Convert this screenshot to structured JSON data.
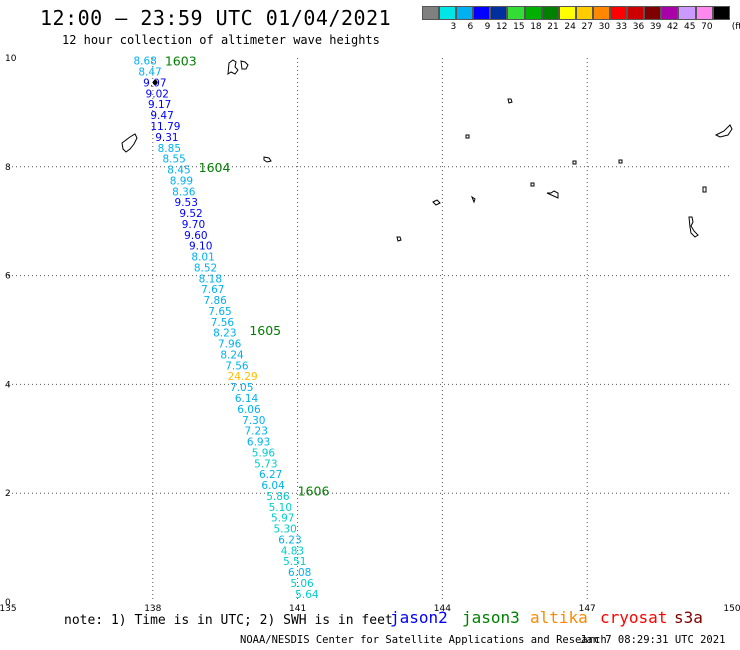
{
  "header": {
    "title": "12:00 – 23:59 UTC 01/04/2021",
    "subtitle": "12 hour collection of altimeter wave heights"
  },
  "colorbar": {
    "unit": "(ft)",
    "items": [
      {
        "label": "",
        "color": "#808080"
      },
      {
        "label": "3",
        "color": "#00e6e6"
      },
      {
        "label": "6",
        "color": "#00b0f0"
      },
      {
        "label": "9",
        "color": "#0000ff"
      },
      {
        "label": "12",
        "color": "#0030a0"
      },
      {
        "label": "15",
        "color": "#33dd33"
      },
      {
        "label": "18",
        "color": "#00b000"
      },
      {
        "label": "21",
        "color": "#008000"
      },
      {
        "label": "24",
        "color": "#ffff00"
      },
      {
        "label": "27",
        "color": "#ffcc00"
      },
      {
        "label": "30",
        "color": "#ff8800"
      },
      {
        "label": "33",
        "color": "#ff0000"
      },
      {
        "label": "36",
        "color": "#cc0000"
      },
      {
        "label": "39",
        "color": "#800000"
      },
      {
        "label": "42",
        "color": "#aa00aa"
      },
      {
        "label": "45",
        "color": "#cc99ff"
      },
      {
        "label": "70",
        "color": "#ff88ee"
      },
      {
        "label": "",
        "color": "#000000"
      }
    ]
  },
  "map": {
    "lon_range": [
      135,
      150
    ],
    "lat_range": [
      0,
      10
    ],
    "x_ticks": [
      "135",
      "138",
      "141",
      "144",
      "147",
      "150"
    ],
    "y_ticks": [
      "0",
      "2",
      "4",
      "6",
      "8",
      "10"
    ],
    "land_color": "#000000",
    "grid_style": "dotted"
  },
  "track": {
    "time_labels": [
      {
        "text": "1603",
        "lon": 138.25,
        "lat": 9.95,
        "color": "#008000"
      },
      {
        "text": "1604",
        "lon": 138.95,
        "lat": 8.0,
        "color": "#008000"
      },
      {
        "text": "1605",
        "lon": 140.0,
        "lat": 5.0,
        "color": "#008000"
      },
      {
        "text": "1606",
        "lon": 141.0,
        "lat": 2.05,
        "color": "#008000"
      }
    ],
    "points": [
      {
        "v": "8.68",
        "lon": 137.6,
        "lat": 9.95,
        "c": "#00b0f0"
      },
      {
        "v": "8.47",
        "lon": 137.7,
        "lat": 9.75,
        "c": "#00b0f0"
      },
      {
        "v": "9.07",
        "lon": 137.8,
        "lat": 9.55,
        "c": "#0000ff"
      },
      {
        "v": "9.02",
        "lon": 137.85,
        "lat": 9.35,
        "c": "#0000ff"
      },
      {
        "v": "9.17",
        "lon": 137.9,
        "lat": 9.15,
        "c": "#0000ff"
      },
      {
        "v": "9.47",
        "lon": 137.95,
        "lat": 8.95,
        "c": "#0000ff"
      },
      {
        "v": "11.79",
        "lon": 137.95,
        "lat": 8.75,
        "c": "#0000ff"
      },
      {
        "v": "9.31",
        "lon": 138.05,
        "lat": 8.55,
        "c": "#0000ff"
      },
      {
        "v": "8.85",
        "lon": 138.1,
        "lat": 8.35,
        "c": "#00b0f0"
      },
      {
        "v": "8.55",
        "lon": 138.2,
        "lat": 8.15,
        "c": "#00b0f0"
      },
      {
        "v": "8.45",
        "lon": 138.3,
        "lat": 7.95,
        "c": "#00b0f0"
      },
      {
        "v": "8.99",
        "lon": 138.35,
        "lat": 7.75,
        "c": "#00b0f0"
      },
      {
        "v": "8.36",
        "lon": 138.4,
        "lat": 7.55,
        "c": "#00b0f0"
      },
      {
        "v": "9.53",
        "lon": 138.45,
        "lat": 7.35,
        "c": "#0000ff"
      },
      {
        "v": "9.52",
        "lon": 138.55,
        "lat": 7.15,
        "c": "#0000ff"
      },
      {
        "v": "9.70",
        "lon": 138.6,
        "lat": 6.95,
        "c": "#0000ff"
      },
      {
        "v": "9.60",
        "lon": 138.65,
        "lat": 6.75,
        "c": "#0000ff"
      },
      {
        "v": "9.10",
        "lon": 138.75,
        "lat": 6.55,
        "c": "#0000ff"
      },
      {
        "v": "8.01",
        "lon": 138.8,
        "lat": 6.35,
        "c": "#00b0f0"
      },
      {
        "v": "8.52",
        "lon": 138.85,
        "lat": 6.15,
        "c": "#00b0f0"
      },
      {
        "v": "8.18",
        "lon": 138.95,
        "lat": 5.95,
        "c": "#00b0f0"
      },
      {
        "v": "7.67",
        "lon": 139.0,
        "lat": 5.75,
        "c": "#00b0f0"
      },
      {
        "v": "7.86",
        "lon": 139.05,
        "lat": 5.55,
        "c": "#00b0f0"
      },
      {
        "v": "7.65",
        "lon": 139.15,
        "lat": 5.35,
        "c": "#00b0f0"
      },
      {
        "v": "7.56",
        "lon": 139.2,
        "lat": 5.15,
        "c": "#00b0f0"
      },
      {
        "v": "8.23",
        "lon": 139.25,
        "lat": 4.95,
        "c": "#00b0f0"
      },
      {
        "v": "7.96",
        "lon": 139.35,
        "lat": 4.75,
        "c": "#00b0f0"
      },
      {
        "v": "8.24",
        "lon": 139.4,
        "lat": 4.55,
        "c": "#00b0f0"
      },
      {
        "v": "7.56",
        "lon": 139.5,
        "lat": 4.35,
        "c": "#00b0f0"
      },
      {
        "v": "24.29",
        "lon": 139.55,
        "lat": 4.15,
        "c": "#ffbb00"
      },
      {
        "v": "7.05",
        "lon": 139.6,
        "lat": 3.95,
        "c": "#00b0f0"
      },
      {
        "v": "6.14",
        "lon": 139.7,
        "lat": 3.75,
        "c": "#00b0f0"
      },
      {
        "v": "6.06",
        "lon": 139.75,
        "lat": 3.55,
        "c": "#00b0f0"
      },
      {
        "v": "7.30",
        "lon": 139.85,
        "lat": 3.35,
        "c": "#00b0f0"
      },
      {
        "v": "7.23",
        "lon": 139.9,
        "lat": 3.15,
        "c": "#00b0f0"
      },
      {
        "v": "6.93",
        "lon": 139.95,
        "lat": 2.95,
        "c": "#00b0f0"
      },
      {
        "v": "5.96",
        "lon": 140.05,
        "lat": 2.75,
        "c": "#00cccc"
      },
      {
        "v": "5.73",
        "lon": 140.1,
        "lat": 2.55,
        "c": "#00cccc"
      },
      {
        "v": "6.27",
        "lon": 140.2,
        "lat": 2.35,
        "c": "#00b0f0"
      },
      {
        "v": "6.04",
        "lon": 140.25,
        "lat": 2.15,
        "c": "#00b0f0"
      },
      {
        "v": "5.86",
        "lon": 140.35,
        "lat": 1.95,
        "c": "#00cccc"
      },
      {
        "v": "5.10",
        "lon": 140.4,
        "lat": 1.75,
        "c": "#00cccc"
      },
      {
        "v": "5.97",
        "lon": 140.45,
        "lat": 1.55,
        "c": "#00cccc"
      },
      {
        "v": "5.30",
        "lon": 140.5,
        "lat": 1.35,
        "c": "#00cccc"
      },
      {
        "v": "6.23",
        "lon": 140.6,
        "lat": 1.15,
        "c": "#00b0f0"
      },
      {
        "v": "4.83",
        "lon": 140.65,
        "lat": 0.95,
        "c": "#00cccc"
      },
      {
        "v": "5.51",
        "lon": 140.7,
        "lat": 0.75,
        "c": "#00cccc"
      },
      {
        "v": "6.08",
        "lon": 140.8,
        "lat": 0.55,
        "c": "#00b0f0"
      },
      {
        "v": "5.06",
        "lon": 140.85,
        "lat": 0.35,
        "c": "#00cccc"
      },
      {
        "v": "5.64",
        "lon": 140.95,
        "lat": 0.15,
        "c": "#00cccc"
      }
    ]
  },
  "footer": {
    "note": "note: 1) Time is in UTC; 2) SWH is in feet",
    "legend": [
      {
        "name": "jason2",
        "color": "#0000ff"
      },
      {
        "name": "jason3",
        "color": "#008000"
      },
      {
        "name": "altika",
        "color": "#ff8800"
      },
      {
        "name": "cryosat",
        "color": "#ff0000"
      },
      {
        "name": "s3a",
        "color": "#800000"
      }
    ],
    "credit": "NOAA/NESDIS Center for Satellite Applications and Research",
    "date": "Jan  7 08:29:31 UTC 2021"
  }
}
